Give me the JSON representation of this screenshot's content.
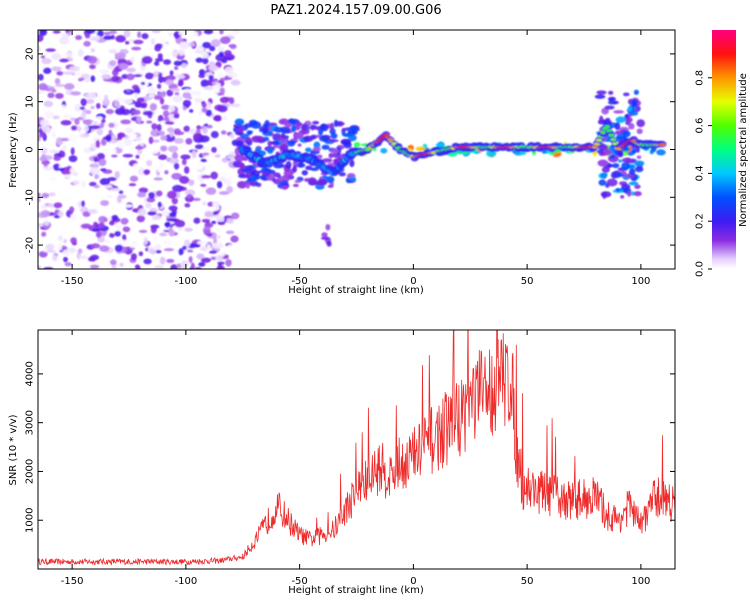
{
  "figure_title": "PAZ1.2024.157.09.00.G06",
  "chart_data": [
    {
      "type": "heatmap",
      "xlabel": "Height of straight line (km)",
      "ylabel": "Frequency (Hz)",
      "xlim": [
        -165,
        115
      ],
      "ylim": [
        -25,
        25
      ],
      "xticks": [
        -150,
        -100,
        -50,
        0,
        50,
        100
      ],
      "yticks": [
        -20,
        -10,
        0,
        10,
        20
      ],
      "colorbar": {
        "label": "Normalized spectral amplitude",
        "range": [
          0,
          1
        ],
        "ticks": [
          0.0,
          0.2,
          0.4,
          0.6,
          0.8
        ],
        "colormap": "rainbow (white, violet, blue, cyan, green, yellow, red, magenta)"
      },
      "regions": [
        {
          "x": [
            -165,
            -78
          ],
          "y": [
            -25,
            25
          ],
          "amplitude": [
            0.0,
            0.2
          ],
          "pattern": "broadband noise"
        },
        {
          "x": [
            -78,
            -25
          ],
          "y": [
            -8,
            6
          ],
          "amplitude": [
            0.1,
            0.35
          ],
          "pattern": "scattered blobs near 0 Hz"
        },
        {
          "x": [
            -40,
            -36
          ],
          "y": [
            -20,
            -16
          ],
          "amplitude": [
            0.1,
            0.2
          ],
          "pattern": "isolated blob"
        },
        {
          "x": [
            -25,
            110
          ],
          "y": [
            -1,
            1
          ],
          "amplitude": [
            0.3,
            0.9
          ],
          "pattern": "narrow line at ~0 Hz"
        },
        {
          "x": [
            82,
            100
          ],
          "y": [
            -10,
            12
          ],
          "amplitude": [
            0.1,
            0.4
          ],
          "pattern": "vertical smearing"
        }
      ],
      "ridge": [
        {
          "x": -75,
          "y": 0
        },
        {
          "x": -65,
          "y": -3
        },
        {
          "x": -55,
          "y": -1
        },
        {
          "x": -45,
          "y": -2
        },
        {
          "x": -35,
          "y": -5
        },
        {
          "x": -28,
          "y": -1
        },
        {
          "x": -20,
          "y": 0
        },
        {
          "x": -12,
          "y": 3
        },
        {
          "x": -6,
          "y": 0
        },
        {
          "x": 0,
          "y": -1.5
        },
        {
          "x": 10,
          "y": -0.5
        },
        {
          "x": 20,
          "y": 0.5
        },
        {
          "x": 30,
          "y": 0.5
        },
        {
          "x": 40,
          "y": 0.5
        },
        {
          "x": 50,
          "y": 0.5
        },
        {
          "x": 60,
          "y": 0.5
        },
        {
          "x": 70,
          "y": 0.5
        },
        {
          "x": 80,
          "y": 0.5
        },
        {
          "x": 85,
          "y": 5
        },
        {
          "x": 90,
          "y": 0
        },
        {
          "x": 96,
          "y": 2
        },
        {
          "x": 100,
          "y": 1
        },
        {
          "x": 110,
          "y": 1
        }
      ]
    },
    {
      "type": "line",
      "xlabel": "Height of straight line (km)",
      "ylabel": "SNR (10 * v/v)",
      "xlim": [
        -165,
        115
      ],
      "ylim": [
        0,
        4900
      ],
      "xticks": [
        -150,
        -100,
        -50,
        0,
        50,
        100
      ],
      "yticks": [
        1000,
        2000,
        3000,
        4000
      ],
      "color": "#ee2a2a",
      "series": [
        {
          "x": [
            -165,
            -140,
            -120,
            -100,
            -85,
            -75,
            -70,
            -65,
            -60,
            -55,
            -50,
            -45,
            -40,
            -35,
            -30,
            -25,
            -20,
            -15,
            -10,
            -5,
            0,
            5,
            10,
            15,
            20,
            25,
            30,
            35,
            40,
            43,
            45,
            48,
            55,
            60,
            70,
            80,
            85,
            90,
            95,
            100,
            105,
            110,
            115
          ],
          "values": [
            150,
            150,
            150,
            150,
            170,
            250,
            550,
            900,
            1300,
            1000,
            700,
            600,
            700,
            800,
            1200,
            1600,
            1800,
            2100,
            1900,
            2200,
            2300,
            2500,
            2700,
            2900,
            3100,
            3400,
            3600,
            3700,
            3900,
            4000,
            2600,
            1700,
            1600,
            1500,
            1400,
            1500,
            1100,
            1000,
            1300,
            900,
            1400,
            1500,
            1300
          ]
        }
      ]
    }
  ]
}
